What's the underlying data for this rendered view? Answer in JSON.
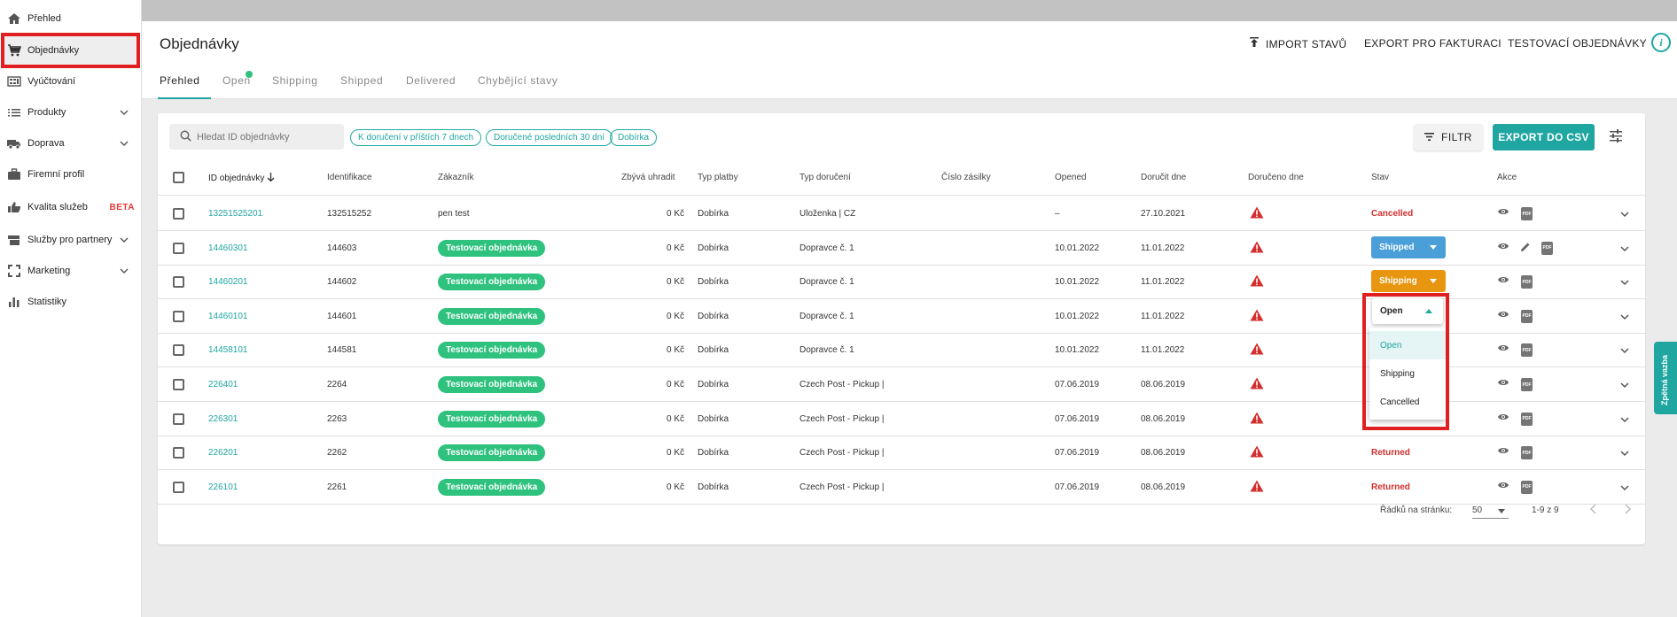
{
  "sidebar": {
    "items": [
      {
        "label": "Přehled",
        "icon": "home-icon"
      },
      {
        "label": "Objednávky",
        "icon": "cart-icon"
      },
      {
        "label": "Vyúčtování",
        "icon": "invoice-icon"
      },
      {
        "label": "Produkty",
        "icon": "list-icon"
      },
      {
        "label": "Doprava",
        "icon": "truck-icon"
      },
      {
        "label": "Firemní profil",
        "icon": "briefcase-icon"
      },
      {
        "label": "Kvalita služeb",
        "icon": "thumbs-up-icon",
        "badge": "BETA"
      },
      {
        "label": "Služby pro partnery",
        "icon": "services-icon"
      },
      {
        "label": "Marketing",
        "icon": "marketing-icon"
      },
      {
        "label": "Statistiky",
        "icon": "bar-chart-icon"
      }
    ]
  },
  "header": {
    "title": "Objednávky",
    "import_label": "IMPORT STAVŮ",
    "export_invoice_label": "EXPORT PRO FAKTURACI",
    "test_orders_label": "TESTOVACÍ OBJEDNÁVKY",
    "info_label": "i"
  },
  "tabs": [
    "Přehled",
    "Open",
    "Shipping",
    "Shipped",
    "Delivered",
    "Chybějící stavy"
  ],
  "toolbar": {
    "search_placeholder": "Hledat ID objednávky",
    "chips": [
      "K doručení v příštích 7 dnech",
      "Doručené posledních 30 dní",
      "Dobírka"
    ],
    "filter_label": "FILTR",
    "export_label": "EXPORT DO CSV"
  },
  "columns": [
    "ID objednávky",
    "Identifikace",
    "Zákazník",
    "Zbývá uhradit",
    "Typ platby",
    "Typ doručení",
    "Číslo zásilky",
    "Opened",
    "Doručit dne",
    "Doručeno dne",
    "Stav",
    "Akce"
  ],
  "rows": [
    {
      "id": "13251525201",
      "ident": "132515252",
      "customer": "pen test",
      "customer_badge": false,
      "due": "0 Kč",
      "payment": "Dobírka",
      "delivery": "Uloženka | CZ",
      "tracking": "",
      "opened": "–",
      "deliver_by": "27.10.2021",
      "status": "Cancelled",
      "status_kind": "text"
    },
    {
      "id": "14460301",
      "ident": "144603",
      "customer": "Testovací objednávka",
      "customer_badge": true,
      "due": "0 Kč",
      "payment": "Dobírka",
      "delivery": "Dopravce č. 1",
      "tracking": "",
      "opened": "10.01.2022",
      "deliver_by": "11.01.2022",
      "status": "Shipped",
      "status_kind": "button-blue"
    },
    {
      "id": "14460201",
      "ident": "144602",
      "customer": "Testovací objednávka",
      "customer_badge": true,
      "due": "0 Kč",
      "payment": "Dobírka",
      "delivery": "Dopravce č. 1",
      "tracking": "",
      "opened": "10.01.2022",
      "deliver_by": "11.01.2022",
      "status": "Shipping",
      "status_kind": "button-orange"
    },
    {
      "id": "14460101",
      "ident": "144601",
      "customer": "Testovací objednávka",
      "customer_badge": true,
      "due": "0 Kč",
      "payment": "Dobírka",
      "delivery": "Dopravce č. 1",
      "tracking": "",
      "opened": "10.01.2022",
      "deliver_by": "11.01.2022",
      "status": "Open",
      "status_kind": "dropdown-open"
    },
    {
      "id": "14458101",
      "ident": "144581",
      "customer": "Testovací objednávka",
      "customer_badge": true,
      "due": "0 Kč",
      "payment": "Dobírka",
      "delivery": "Dopravce č. 1",
      "tracking": "",
      "opened": "10.01.2022",
      "deliver_by": "11.01.2022",
      "status": "",
      "status_kind": "none"
    },
    {
      "id": "226401",
      "ident": "2264",
      "customer": "Testovací objednávka",
      "customer_badge": true,
      "due": "0 Kč",
      "payment": "Dobírka",
      "delivery": "Czech Post - Pickup | C",
      "tracking": "",
      "opened": "07.06.2019",
      "deliver_by": "08.06.2019",
      "status": "",
      "status_kind": "none"
    },
    {
      "id": "226301",
      "ident": "2263",
      "customer": "Testovací objednávka",
      "customer_badge": true,
      "due": "0 Kč",
      "payment": "Dobírka",
      "delivery": "Czech Post - Pickup | C",
      "tracking": "",
      "opened": "07.06.2019",
      "deliver_by": "08.06.2019",
      "status": "",
      "status_kind": "none"
    },
    {
      "id": "226201",
      "ident": "2262",
      "customer": "Testovací objednávka",
      "customer_badge": true,
      "due": "0 Kč",
      "payment": "Dobírka",
      "delivery": "Czech Post - Pickup | C",
      "tracking": "",
      "opened": "07.06.2019",
      "deliver_by": "08.06.2019",
      "status": "Returned",
      "status_kind": "text"
    },
    {
      "id": "226101",
      "ident": "2261",
      "customer": "Testovací objednávka",
      "customer_badge": true,
      "due": "0 Kč",
      "payment": "Dobírka",
      "delivery": "Czech Post - Pickup | C",
      "tracking": "",
      "opened": "07.06.2019",
      "deliver_by": "08.06.2019",
      "status": "Returned",
      "status_kind": "text"
    }
  ],
  "status_dropdown": {
    "current": "Open",
    "options": [
      "Open",
      "Shipping",
      "Cancelled"
    ],
    "highlighted": "Open"
  },
  "pagination": {
    "rows_label": "Řádků na stránku:",
    "rows_value": "50",
    "range": "1-9 z 9"
  },
  "feedback_tab": "Zpětná vazba",
  "colors": {
    "accent": "#1fa6a1",
    "badge_green": "#2ec27e",
    "shipped_blue": "#4a9fd8",
    "shipping_orange": "#e89610",
    "status_red": "#d32f2f",
    "highlight_red": "#e02020"
  }
}
